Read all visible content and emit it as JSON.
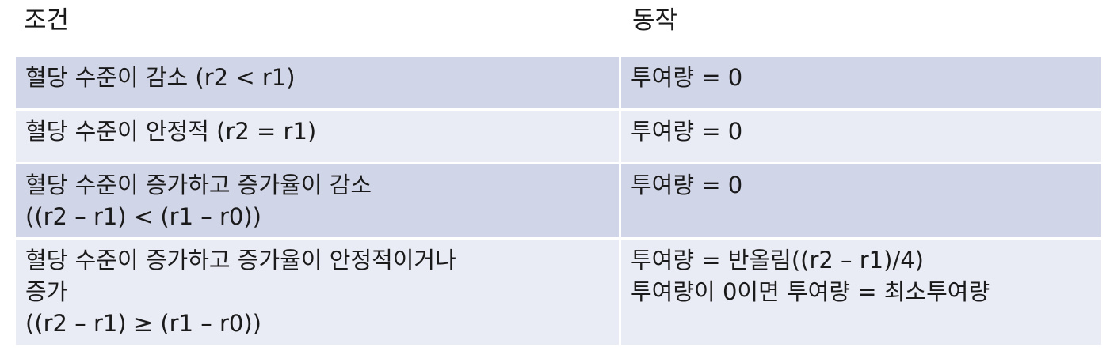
{
  "header": {
    "condition": "조건",
    "action": "동작"
  },
  "rows": [
    {
      "condition": [
        "혈당 수준이 감소 (r2 < r1)"
      ],
      "action": [
        "투여량 = 0"
      ]
    },
    {
      "condition": [
        "혈당 수준이 안정적 (r2 = r1)"
      ],
      "action": [
        "투여량 = 0"
      ]
    },
    {
      "condition": [
        "혈당 수준이 증가하고 증가율이 감소",
        "((r2 – r1) < (r1 – r0))"
      ],
      "action": [
        "투여량 = 0"
      ]
    },
    {
      "condition": [
        "혈당 수준이 증가하고 증가율이 안정적이거나",
        "증가",
        "((r2 – r1) ≥ (r1 – r0))"
      ],
      "action": [
        "투여량 = 반올림((r2 – r1)/4)",
        "투여량이 0이면 투여량 = 최소투여량"
      ]
    }
  ],
  "colors": {
    "row_dark": "#d1d5e8",
    "row_light": "#e9ebf5",
    "text": "#1a1a1a"
  }
}
